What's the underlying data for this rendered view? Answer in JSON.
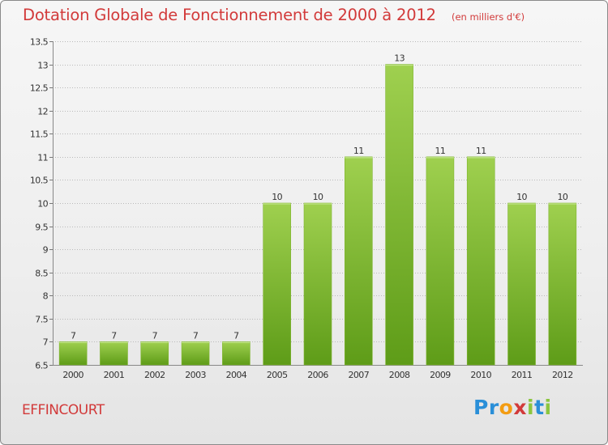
{
  "header": {
    "title": "Dotation Globale de Fonctionnement de 2000 à 2012",
    "subtitle": "(en milliers d'€)"
  },
  "footer": {
    "commune": "EFFINCOURT"
  },
  "logo": {
    "text": "Proxiti",
    "letters": [
      "P",
      "r",
      "o",
      "x",
      "i",
      "t",
      "i"
    ],
    "letter_colors": [
      "#2a8fd8",
      "#2a8fd8",
      "#f39c12",
      "#d23a3a",
      "#8cc63f",
      "#2a8fd8",
      "#8cc63f"
    ]
  },
  "colors": {
    "title": "#d23a3a",
    "bar_top": "#9fd04f",
    "bar_bottom": "#5e9c18",
    "grid": "#b9b9b9",
    "axis_text": "#333333"
  },
  "chart_data": {
    "type": "bar",
    "categories": [
      "2000",
      "2001",
      "2002",
      "2003",
      "2004",
      "2005",
      "2006",
      "2007",
      "2008",
      "2009",
      "2010",
      "2011",
      "2012"
    ],
    "values": [
      7,
      7,
      7,
      7,
      7,
      10,
      10,
      11,
      13,
      11,
      11,
      10,
      10
    ],
    "data_labels": [
      "7",
      "7",
      "7",
      "7",
      "7",
      "10",
      "10",
      "11",
      "13",
      "11",
      "11",
      "10",
      "10"
    ],
    "ylim": [
      6.5,
      13.5
    ],
    "yticks": [
      6.5,
      7,
      7.5,
      8,
      8.5,
      9,
      9.5,
      10,
      10.5,
      11,
      11.5,
      12,
      12.5,
      13,
      13.5
    ],
    "ytick_labels": [
      "6.5",
      "7",
      "7.5",
      "8",
      "8.5",
      "9",
      "9.5",
      "10",
      "10.5",
      "11",
      "11.5",
      "12",
      "12.5",
      "13",
      "13.5"
    ],
    "grid": true,
    "title": "Dotation Globale de Fonctionnement de 2000 à 2012",
    "subtitle": "(en milliers d'€)",
    "xlabel": "",
    "ylabel": ""
  }
}
